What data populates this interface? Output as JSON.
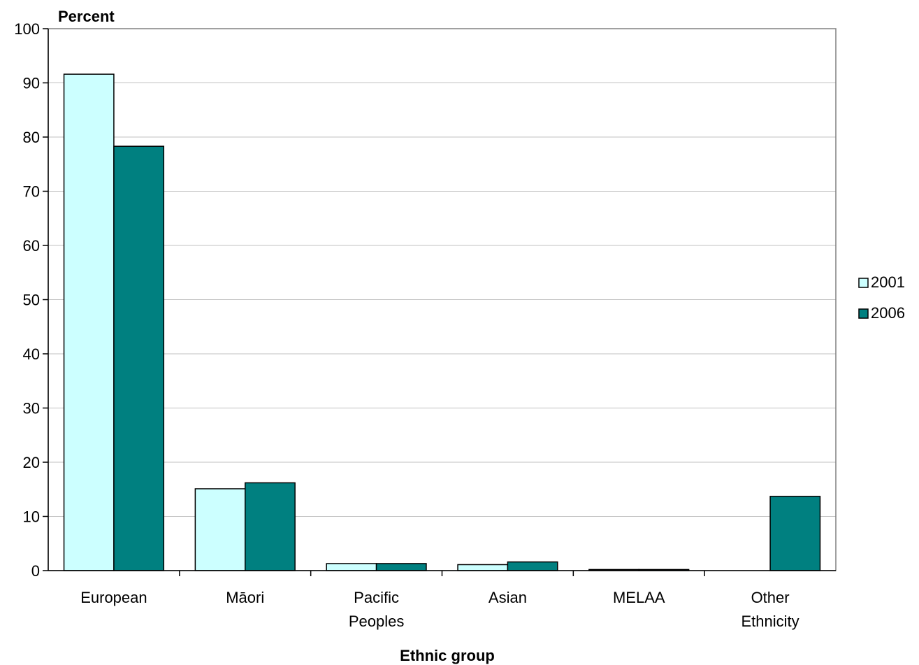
{
  "chart_data": {
    "type": "bar",
    "ylabel": "Percent",
    "xlabel": "Ethnic group",
    "ylim": [
      0,
      100
    ],
    "yticks": [
      0,
      10,
      20,
      30,
      40,
      50,
      60,
      70,
      80,
      90,
      100
    ],
    "grid": true,
    "legend_position": "right",
    "categories": [
      {
        "lines": [
          "European"
        ]
      },
      {
        "lines": [
          "Māori"
        ]
      },
      {
        "lines": [
          "Pacific",
          "Peoples"
        ]
      },
      {
        "lines": [
          "Asian"
        ]
      },
      {
        "lines": [
          "MELAA"
        ]
      },
      {
        "lines": [
          "Other",
          "Ethnicity"
        ]
      }
    ],
    "series": [
      {
        "name": "2001",
        "color": "#ccffff",
        "values": [
          91.6,
          15.1,
          1.3,
          1.1,
          0.2,
          0
        ]
      },
      {
        "name": "2006",
        "color": "#008080",
        "values": [
          78.3,
          16.2,
          1.3,
          1.6,
          0.2,
          13.7
        ]
      }
    ]
  }
}
